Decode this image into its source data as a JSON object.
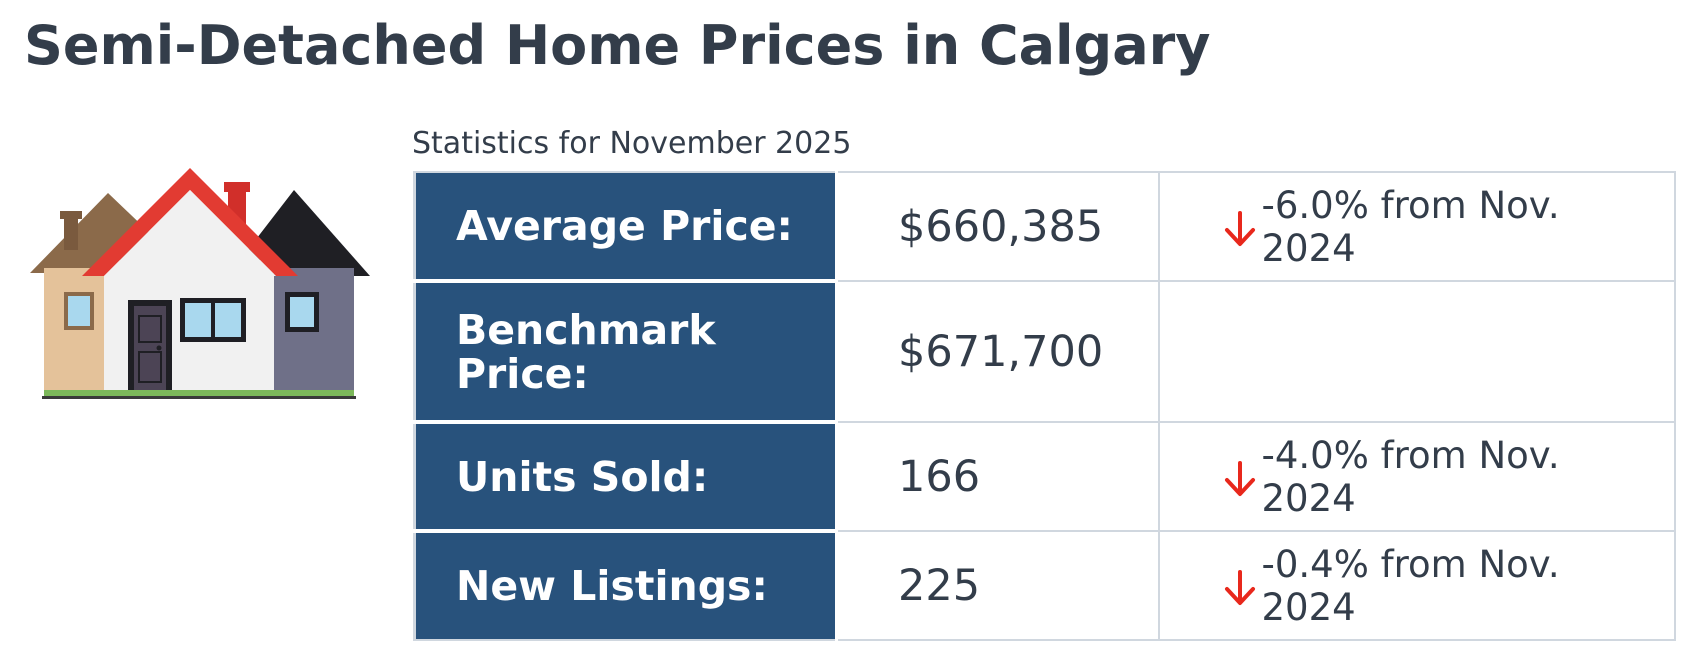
{
  "header": {
    "title": "Semi-Detached Home Prices in Calgary"
  },
  "illustration": {
    "icon": "semi-detached-house-icon"
  },
  "stats": {
    "subtitle": "Statistics for November 2025",
    "rows": [
      {
        "label": "Average Price:",
        "value": "$660,385",
        "change": "-6.0% from Nov. 2024",
        "direction": "down"
      },
      {
        "label": "Benchmark Price:",
        "value": "$671,700",
        "change": "",
        "direction": ""
      },
      {
        "label": "Units Sold:",
        "value": "166",
        "change": "-4.0% from Nov. 2024",
        "direction": "down"
      },
      {
        "label": "New Listings:",
        "value": "225",
        "change": "-0.4% from Nov. 2024",
        "direction": "down"
      }
    ]
  },
  "colors": {
    "label_background": "#28527c",
    "label_text": "#ffffff",
    "text": "#333d4a",
    "down_arrow": "#e8281c",
    "grid_border": "#d0d7df"
  }
}
